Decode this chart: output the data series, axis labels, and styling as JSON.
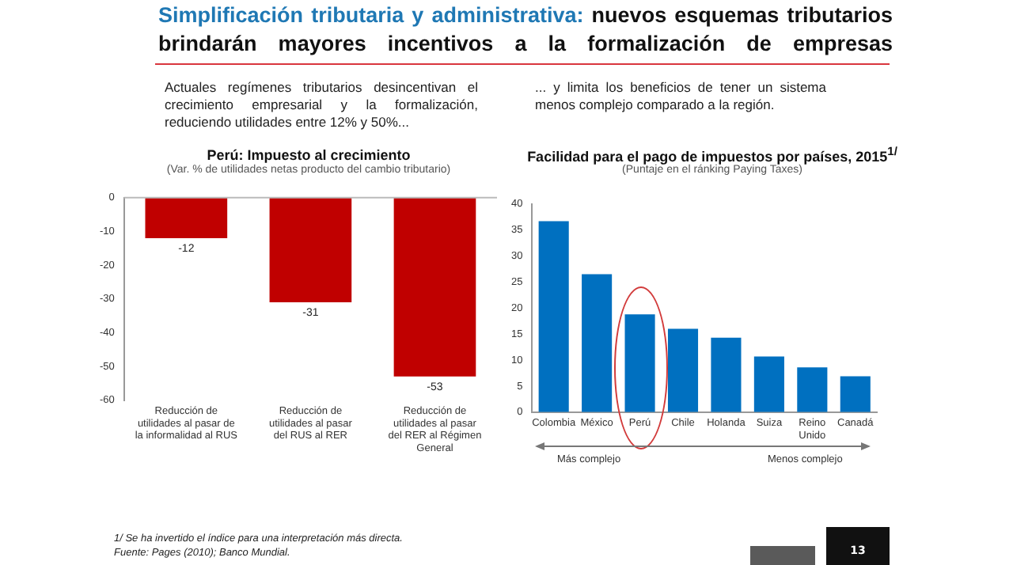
{
  "chart_data": [
    {
      "type": "bar",
      "title": "Perú: Impuesto al crecimiento",
      "subtitle": "(Var. % de utilidades netas producto del cambio tributario)",
      "categories": [
        "Reducción de utilidades al pasar de la informalidad al RUS",
        "Reducción de utilidades al pasar del RUS al RER",
        "Reducción de utilidades al pasar del RER al Régimen General"
      ],
      "values": [
        -12,
        -31,
        -53
      ],
      "color": "#c00000",
      "ylim": [
        -60,
        0
      ],
      "yticks": [
        -60,
        -50,
        -40,
        -30,
        -20,
        -10,
        0
      ],
      "data_labels": true,
      "grid": false,
      "legend": false,
      "annotations": [
        "Simplificación tributaria y administrativa:",
        "nuevos esquemas tributarios brindarán mayores incentivos a la formalización de empresas",
        "Actuales regímenes tributarios desincentivan el crecimiento empresarial y la formalización, reduciendo utilidades entre 12% y 50%..."
      ]
    },
    {
      "type": "bar",
      "title": "Facilidad para el pago de impuestos por países, 2015$^{1/}$",
      "subtitle": "(Puntaje en el ránking Paying Taxes)",
      "categories": [
        "Colombia",
        "México",
        "Perú",
        "Chile",
        "Holanda",
        "Suiza",
        "Reino Unido",
        "Canadá"
      ],
      "values": [
        36.7,
        26.5,
        18.8,
        16.0,
        14.3,
        10.7,
        8.6,
        6.9
      ],
      "color": "#0070c0",
      "ylim": [
        0,
        40
      ],
      "yticks": [
        0,
        5,
        10,
        15,
        20,
        25,
        30,
        35,
        40
      ],
      "grid": false,
      "legend": false,
      "annotations": [
        "... y limita los beneficios de tener un sistema menos complejo comparado a la región.",
        "Más complejo",
        "Menos complejo",
        "1/ Se ha invertido el índice para una interpretación más directa.",
        "Fuente: Pages (2010); Banco Mundial.",
        "13"
      ]
    }
  ]
}
